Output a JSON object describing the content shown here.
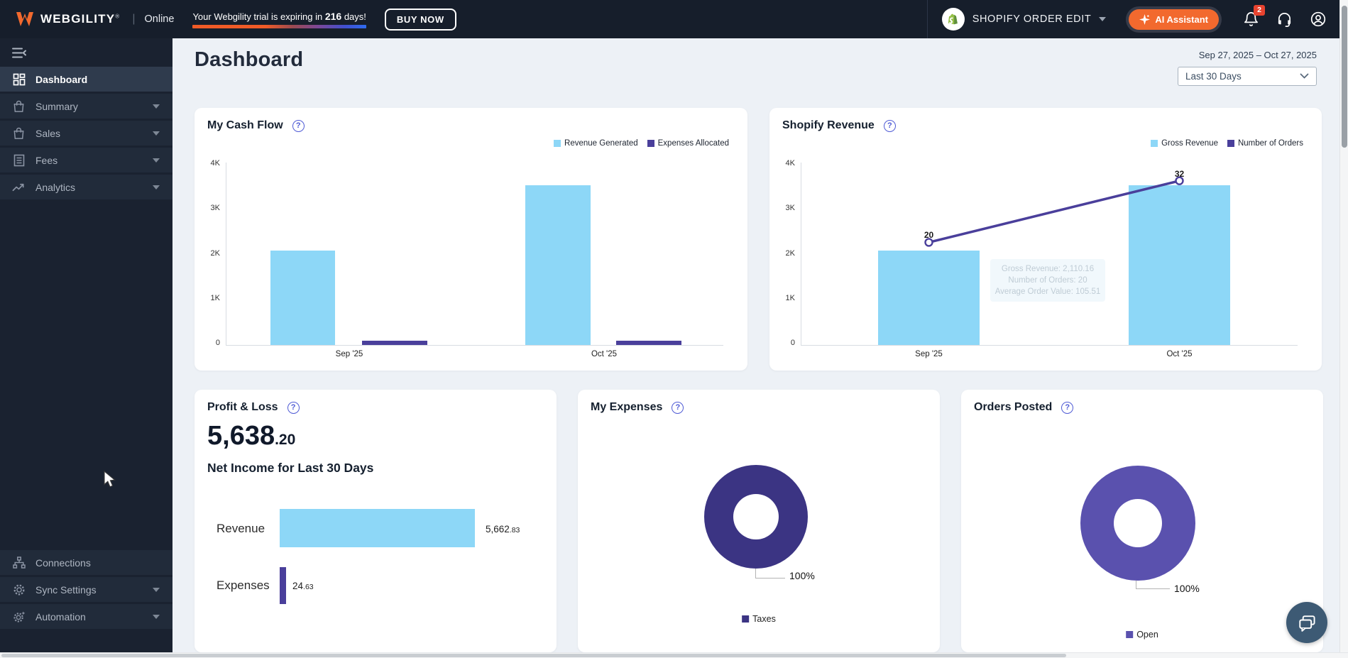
{
  "topbar": {
    "brand": "WEBGILITY",
    "brand_mark": "®",
    "separator": "|",
    "status": "Online",
    "trial_prefix": "Your Webgility trial is expiring in ",
    "trial_days": "216",
    "trial_suffix": " days!",
    "buy_now": "BUY NOW",
    "store_name": "SHOPIFY ORDER EDIT",
    "ai_assistant": "AI Assistant",
    "notification_count": "2",
    "accent_orange": "#f2692e",
    "badge_red": "#e8432f"
  },
  "sidebar": {
    "items": [
      {
        "label": "Dashboard",
        "icon": "dashboard-grid",
        "active": true,
        "expandable": false
      },
      {
        "label": "Summary",
        "icon": "bag",
        "active": false,
        "expandable": true
      },
      {
        "label": "Sales",
        "icon": "bag",
        "active": false,
        "expandable": true
      },
      {
        "label": "Fees",
        "icon": "document",
        "active": false,
        "expandable": true
      },
      {
        "label": "Analytics",
        "icon": "trend",
        "active": false,
        "expandable": true
      }
    ],
    "bottom_items": [
      {
        "label": "Connections",
        "icon": "network",
        "active": false,
        "expandable": false
      },
      {
        "label": "Sync Settings",
        "icon": "gear",
        "active": false,
        "expandable": true
      },
      {
        "label": "Automation",
        "icon": "gear-sparkle",
        "active": false,
        "expandable": true
      }
    ]
  },
  "header": {
    "title": "Dashboard",
    "date_range": "Sep 27, 2025 – Oct 27, 2025",
    "period": "Last 30 Days"
  },
  "cards": {
    "cash_flow": {
      "title": "My Cash Flow"
    },
    "shopify_revenue": {
      "title": "Shopify Revenue"
    },
    "profit_loss": {
      "title": "Profit & Loss",
      "amount_int": "5,638",
      "amount_dec": ".20",
      "subtitle": "Net Income for Last 30 Days",
      "rows": [
        {
          "label": "Revenue",
          "value_int": "5,662",
          "value_dec": ".83"
        },
        {
          "label": "Expenses",
          "value_int": "24",
          "value_dec": ".63"
        }
      ]
    },
    "my_expenses": {
      "title": "My Expenses",
      "donut_label": "100%"
    },
    "orders_posted": {
      "title": "Orders Posted",
      "donut_label": "100%"
    }
  },
  "chart_data": [
    {
      "id": "my_cash_flow",
      "type": "bar",
      "title": "My Cash Flow",
      "categories": [
        "Sep '25",
        "Oct '25"
      ],
      "series": [
        {
          "name": "Revenue Generated",
          "color": "#8dd7f7",
          "values": [
            2110,
            3560
          ]
        },
        {
          "name": "Expenses Allocated",
          "color": "#4a3f9b",
          "values": [
            100,
            100
          ]
        }
      ],
      "ylim": [
        0,
        4000
      ],
      "ytick_labels": [
        "0",
        "1K",
        "2K",
        "3K",
        "4K"
      ],
      "grid": false,
      "legend_position": "top-right"
    },
    {
      "id": "shopify_revenue",
      "type": "bar+line",
      "title": "Shopify Revenue",
      "categories": [
        "Sep '25",
        "Oct '25"
      ],
      "series": [
        {
          "name": "Gross Revenue",
          "kind": "bar",
          "color": "#8dd7f7",
          "values": [
            2110.16,
            3560
          ]
        },
        {
          "name": "Number of Orders",
          "kind": "line",
          "color": "#4a3f9b",
          "values": [
            20,
            32
          ],
          "point_labels": [
            "20",
            "32"
          ]
        }
      ],
      "ylim": [
        0,
        4000
      ],
      "y2lim": [
        0,
        35
      ],
      "ytick_labels": [
        "0",
        "1K",
        "2K",
        "3K",
        "4K"
      ],
      "grid": false,
      "legend_position": "top-right",
      "tooltip": {
        "lines": [
          "Gross Revenue: 2,110.16",
          "Number of Orders: 20",
          "Average Order Value: 105.51"
        ]
      }
    },
    {
      "id": "profit_loss",
      "type": "bar",
      "orientation": "horizontal",
      "categories": [
        "Revenue",
        "Expenses"
      ],
      "values": [
        5662.83,
        24.63
      ],
      "value_labels": [
        "5,662.83",
        "24.63"
      ],
      "colors": [
        "#8dd7f7",
        "#4a3f9b"
      ],
      "xlim": [
        0,
        5662.83
      ]
    },
    {
      "id": "my_expenses",
      "type": "pie",
      "slices": [
        {
          "label": "Taxes",
          "value": 100,
          "pct_label": "100%",
          "color": "#3b3483"
        }
      ]
    },
    {
      "id": "orders_posted",
      "type": "pie",
      "slices": [
        {
          "label": "Open",
          "value": 100,
          "pct_label": "100%",
          "color": "#5a51ae"
        }
      ]
    }
  ]
}
